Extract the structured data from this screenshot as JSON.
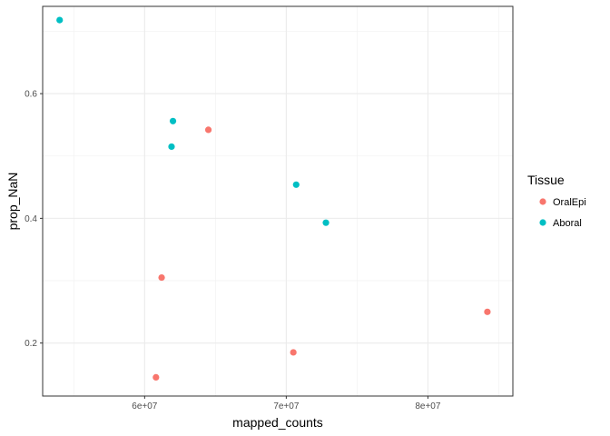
{
  "chart_data": {
    "type": "scatter",
    "xlabel": "mapped_counts",
    "ylabel": "prop_NaN",
    "xlim": [
      52800000,
      86000000
    ],
    "ylim": [
      0.115,
      0.74
    ],
    "x_ticks": [
      60000000,
      70000000,
      80000000
    ],
    "x_tick_labels": [
      "6e+07",
      "7e+07",
      "8e+07"
    ],
    "y_ticks": [
      0.2,
      0.4,
      0.6
    ],
    "y_tick_labels": [
      "0.2",
      "0.4",
      "0.6"
    ],
    "grid": true,
    "legend": {
      "title": "Tissue",
      "placement": "right"
    },
    "series": [
      {
        "name": "OralEpi",
        "color": "#f8766d",
        "points": [
          {
            "x": 64500000,
            "y": 0.542
          },
          {
            "x": 61200000,
            "y": 0.305
          },
          {
            "x": 60800000,
            "y": 0.145
          },
          {
            "x": 70500000,
            "y": 0.185
          },
          {
            "x": 84200000,
            "y": 0.25
          }
        ]
      },
      {
        "name": "Aboral",
        "color": "#00bfc4",
        "points": [
          {
            "x": 54000000,
            "y": 0.718
          },
          {
            "x": 62000000,
            "y": 0.556
          },
          {
            "x": 61900000,
            "y": 0.515
          },
          {
            "x": 70700000,
            "y": 0.454
          },
          {
            "x": 72800000,
            "y": 0.393
          }
        ]
      }
    ]
  }
}
